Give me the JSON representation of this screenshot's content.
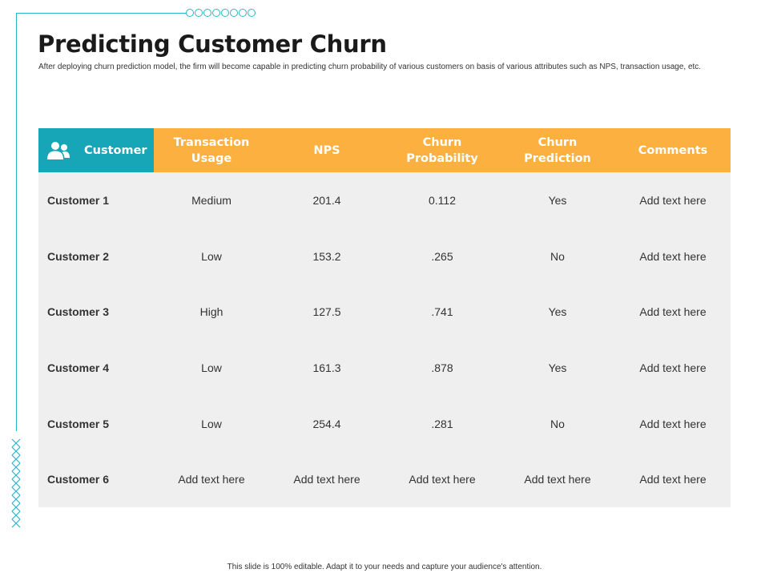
{
  "title": "Predicting Customer Churn",
  "subtitle": "After deploying churn prediction model, the firm will become capable in predicting churn probability of various customers on basis of various attributes such as NPS, transaction usage, etc.",
  "table": {
    "headers": [
      "Customer",
      "Transaction Usage",
      "NPS",
      "Churn Probability",
      "Churn Prediction",
      "Comments"
    ],
    "header_icon": "users-icon",
    "rows": [
      [
        "Customer 1",
        "Medium",
        "201.4",
        "0.112",
        "Yes",
        "Add text here"
      ],
      [
        "Customer 2",
        "Low",
        "153.2",
        ".265",
        "No",
        "Add text here"
      ],
      [
        "Customer 3",
        "High",
        "127.5",
        ".741",
        "Yes",
        "Add text here"
      ],
      [
        "Customer 4",
        "Low",
        "161.3",
        ".878",
        "Yes",
        "Add text here"
      ],
      [
        "Customer 5",
        "Low",
        "254.4",
        ".281",
        "No",
        "Add text here"
      ],
      [
        "Customer 6",
        "Add text here",
        "Add text here",
        "Add text here",
        "Add text here",
        "Add text here"
      ]
    ]
  },
  "colors": {
    "accent_teal": "#17a6b8",
    "header_orange": "#fbb040",
    "body_gray": "#efefef"
  },
  "footer": "This slide is 100% editable.  Adapt it to your needs and capture your audience's attention."
}
